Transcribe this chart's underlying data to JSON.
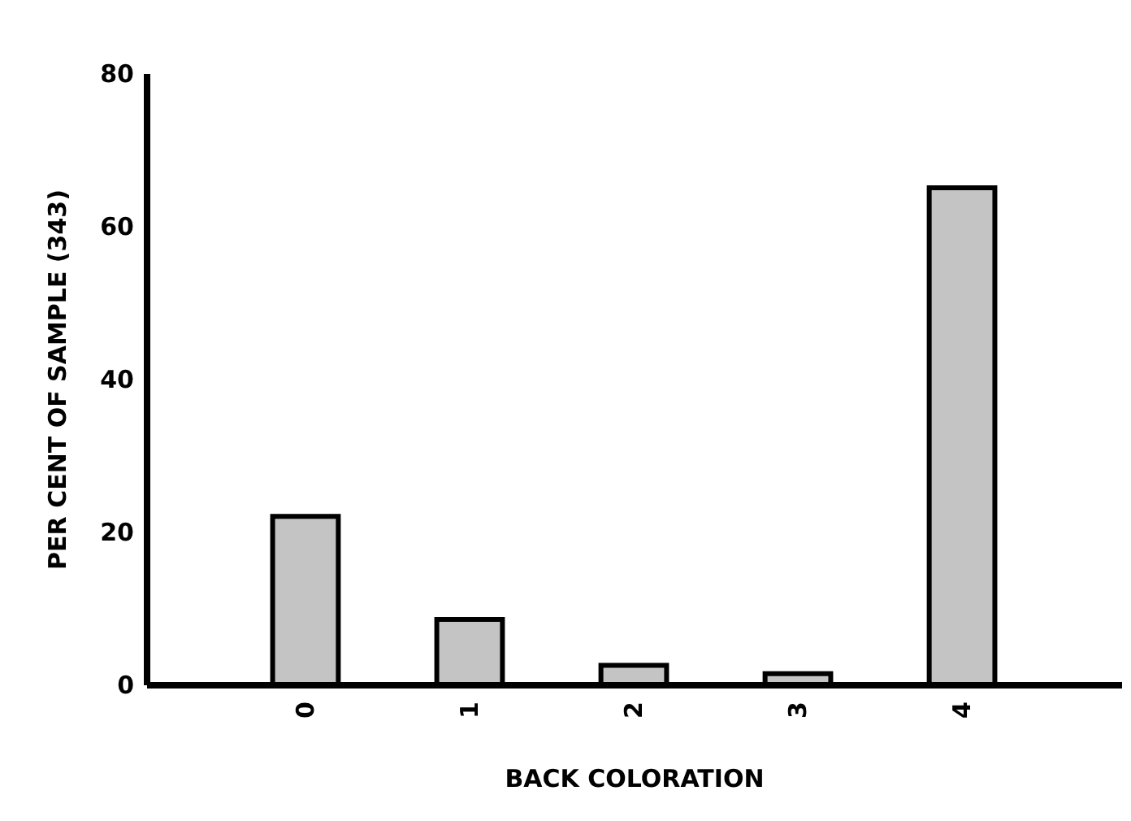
{
  "chart_data": {
    "type": "bar",
    "xlabel": "BACK COLORATION",
    "ylabel": "PER CENT OF SAMPLE (343)",
    "categories": [
      "0",
      "1",
      "2",
      "3",
      "4"
    ],
    "values": [
      22,
      8.5,
      2.5,
      1.4,
      65
    ],
    "color": "#c4c4c4",
    "ylim": [
      0,
      80
    ],
    "yticks": [
      0,
      20,
      40,
      60,
      80
    ],
    "grid": false
  }
}
